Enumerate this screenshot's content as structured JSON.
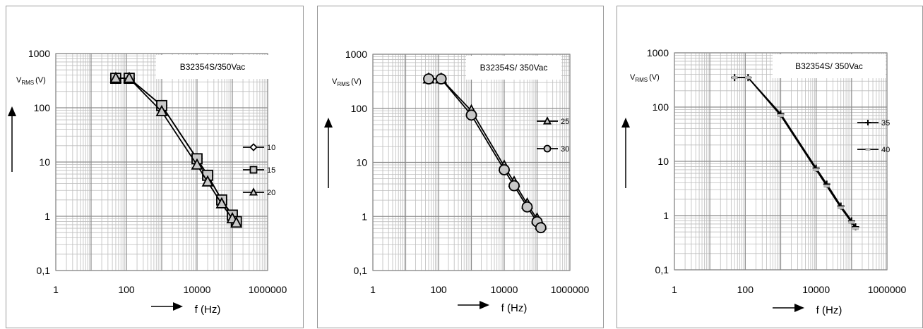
{
  "chart_data": [
    {
      "type": "line",
      "title": "B32354S/350Vac",
      "ylabel_main": "V",
      "ylabel_sub": "RMS",
      "ylabel_unit": "(V)",
      "xlabel": "f (Hz)",
      "xscale": "log",
      "yscale": "log",
      "xlim": [
        1,
        1000000
      ],
      "ylim": [
        0.1,
        1000
      ],
      "xticks": [
        "1",
        "100",
        "10000",
        "1000000"
      ],
      "yticks": [
        "1000",
        "100",
        "10",
        "1",
        "0,1"
      ],
      "grid": true,
      "legend_position": "right",
      "series": [
        {
          "name": "10",
          "marker": "diamond",
          "x": [
            50,
            120,
            1000,
            10000,
            20000,
            50000,
            100000,
            130000
          ],
          "y": [
            350,
            350,
            110,
            11.5,
            5.7,
            2.0,
            1.0,
            0.8
          ]
        },
        {
          "name": "15",
          "marker": "square",
          "x": [
            50,
            120,
            1000,
            10000,
            20000,
            50000,
            100000,
            130000
          ],
          "y": [
            350,
            350,
            110,
            11.5,
            5.7,
            2.0,
            1.05,
            0.8
          ]
        },
        {
          "name": "20",
          "marker": "triangle",
          "x": [
            50,
            120,
            1000,
            10000,
            20000,
            50000,
            100000,
            130000
          ],
          "y": [
            350,
            350,
            85,
            8.8,
            4.3,
            1.7,
            0.9,
            0.75
          ]
        }
      ]
    },
    {
      "type": "line",
      "title": "B32354S/ 350Vac",
      "ylabel_main": "V",
      "ylabel_sub": "RMS",
      "ylabel_unit": "(V)",
      "xlabel": "f (Hz)",
      "xscale": "log",
      "yscale": "log",
      "xlim": [
        1,
        1000000
      ],
      "ylim": [
        0.1,
        1000
      ],
      "xticks": [
        "1",
        "100",
        "10000",
        "1000000"
      ],
      "yticks": [
        "1000",
        "100",
        "10",
        "1",
        "0,1"
      ],
      "grid": true,
      "legend_position": "right",
      "series": [
        {
          "name": "25",
          "marker": "triangle",
          "x": [
            50,
            120,
            1000,
            10000,
            20000,
            50000,
            100000,
            130000
          ],
          "y": [
            350,
            350,
            90,
            8.5,
            4.3,
            1.7,
            0.9,
            0.7
          ]
        },
        {
          "name": "30",
          "marker": "circle",
          "x": [
            50,
            120,
            1000,
            10000,
            20000,
            50000,
            100000,
            130000
          ],
          "y": [
            350,
            350,
            75,
            7.3,
            3.7,
            1.5,
            0.8,
            0.62
          ]
        }
      ]
    },
    {
      "type": "line",
      "title": "B32354S/ 350Vac",
      "ylabel_main": "V",
      "ylabel_sub": "RMS",
      "ylabel_unit": "(V)",
      "xlabel": "f (Hz)",
      "xscale": "log",
      "yscale": "log",
      "xlim": [
        1,
        1000000
      ],
      "ylim": [
        0.1,
        1000
      ],
      "xticks": [
        "1",
        "100",
        "10000",
        "1000000"
      ],
      "yticks": [
        "1000",
        "100",
        "10",
        "1",
        "0,1"
      ],
      "grid": true,
      "legend_position": "right",
      "series": [
        {
          "name": "35",
          "marker": "plus",
          "x": [
            50,
            120,
            1000,
            10000,
            20000,
            50000,
            100000,
            130000
          ],
          "y": [
            350,
            350,
            75,
            7.5,
            3.8,
            1.5,
            0.8,
            0.62
          ]
        },
        {
          "name": "40",
          "marker": "dash",
          "x": [
            50,
            120,
            1000,
            10000,
            20000,
            50000,
            100000,
            130000
          ],
          "y": [
            350,
            350,
            70,
            7.0,
            3.5,
            1.4,
            0.75,
            0.58
          ]
        }
      ]
    }
  ]
}
